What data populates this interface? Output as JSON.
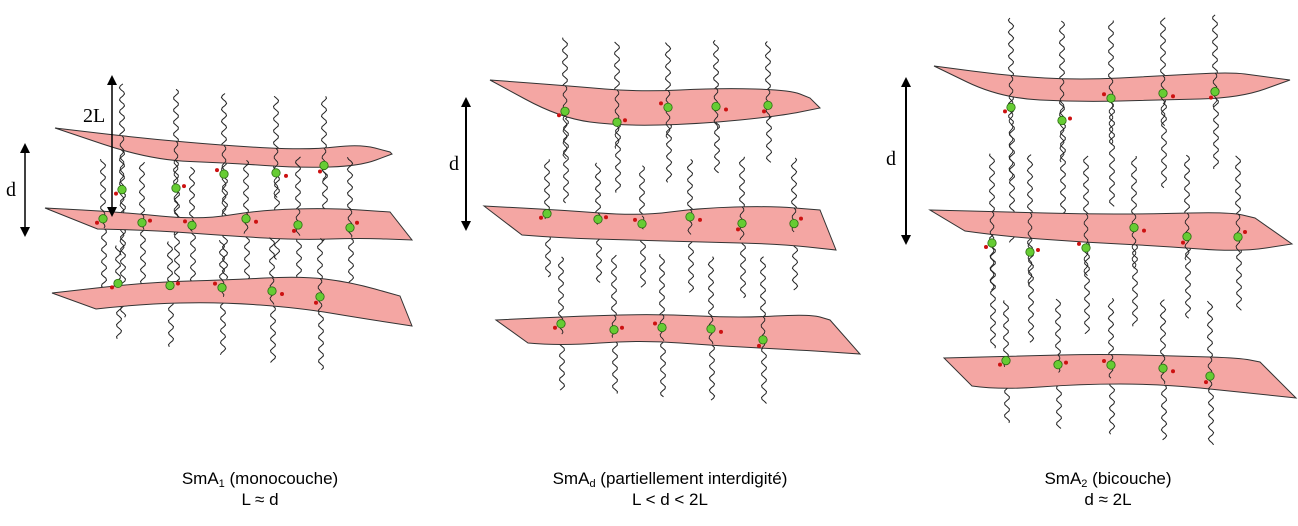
{
  "panels": [
    {
      "id": "monolayer",
      "phase_name": "SmA",
      "phase_subscript": "1",
      "phase_desc": "(monocouche)",
      "relation": "L ≈ d",
      "spacing_label": "d",
      "length_label": "2L"
    },
    {
      "id": "partial",
      "phase_name": "SmA",
      "phase_subscript": "d",
      "phase_desc": "(partiellement interdigité)",
      "relation": "L < d < 2L",
      "spacing_label": "d"
    },
    {
      "id": "bilayer",
      "phase_name": "SmA",
      "phase_subscript": "2",
      "phase_desc": "(bicouche)",
      "relation": "d  ≈ 2L",
      "spacing_label": "d"
    }
  ],
  "colors": {
    "layer_fill": "#f4a6a3",
    "layer_stroke": "#333333",
    "head_group": "#66cc33",
    "counter_ion": "#cc1111",
    "chain": "#222222",
    "arrow": "#000000"
  }
}
